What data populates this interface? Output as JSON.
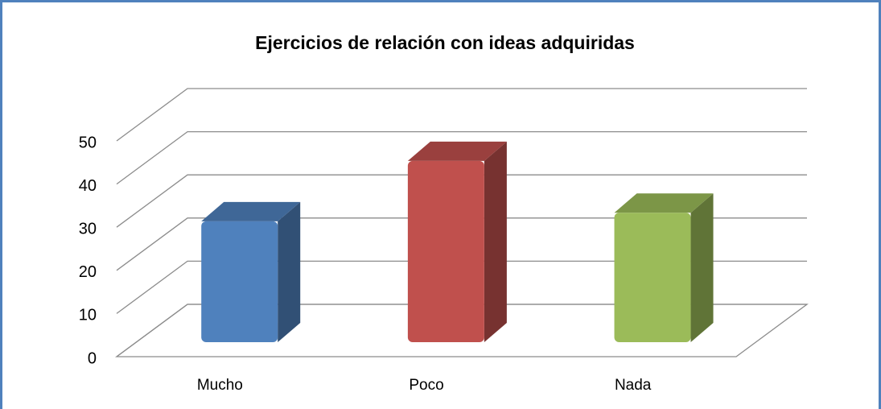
{
  "chart_data": {
    "type": "bar3d",
    "title": "Ejercicios de relación con ideas adquiridas",
    "categories": [
      "Mucho",
      "Poco",
      "Nada"
    ],
    "values": [
      28,
      42,
      30
    ],
    "colors": [
      "#4f81bd",
      "#c0504d",
      "#9bbb59"
    ],
    "ylim": [
      0,
      50
    ],
    "yticks": [
      0,
      10,
      20,
      30,
      40,
      50
    ],
    "grid": true
  }
}
